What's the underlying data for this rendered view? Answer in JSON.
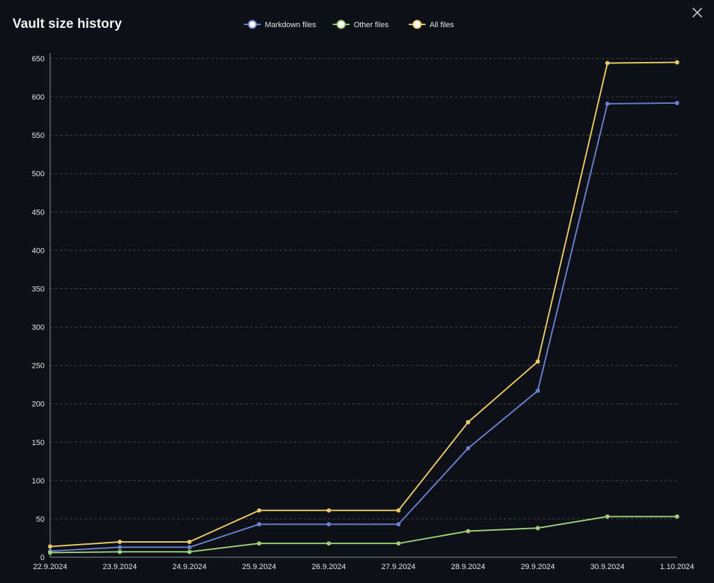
{
  "window": {
    "title": "Vault size history",
    "close_icon": "close-icon"
  },
  "colors": {
    "background": "#0d1017",
    "grid": "#3d4350",
    "axis": "#8a8f99",
    "text": "#e6e6e6",
    "markdown": "#6b7fd0",
    "other": "#9ccf7c",
    "all": "#ecc968"
  },
  "chart_data": {
    "type": "line",
    "title": "Vault size history",
    "xlabel": "",
    "ylabel": "",
    "categories": [
      "22.9.2024",
      "23.9.2024",
      "24.9.2024",
      "25.9.2024",
      "26.9.2024",
      "27.9.2024",
      "28.9.2024",
      "29.9.2024",
      "30.9.2024",
      "1.10.2024"
    ],
    "ylim": [
      0,
      650
    ],
    "yticks": [
      0,
      50,
      100,
      150,
      200,
      250,
      300,
      350,
      400,
      450,
      500,
      550,
      600,
      650
    ],
    "grid": true,
    "legend_position": "top-center",
    "series": [
      {
        "name": "Markdown files",
        "color": "#6b7fd0",
        "values": [
          8,
          13,
          13,
          43,
          43,
          43,
          142,
          217,
          591,
          592
        ]
      },
      {
        "name": "Other files",
        "color": "#9ccf7c",
        "values": [
          6,
          7,
          7,
          18,
          18,
          18,
          34,
          38,
          53,
          53
        ]
      },
      {
        "name": "All files",
        "color": "#ecc968",
        "values": [
          14,
          20,
          20,
          61,
          61,
          61,
          176,
          255,
          644,
          645
        ]
      }
    ]
  }
}
